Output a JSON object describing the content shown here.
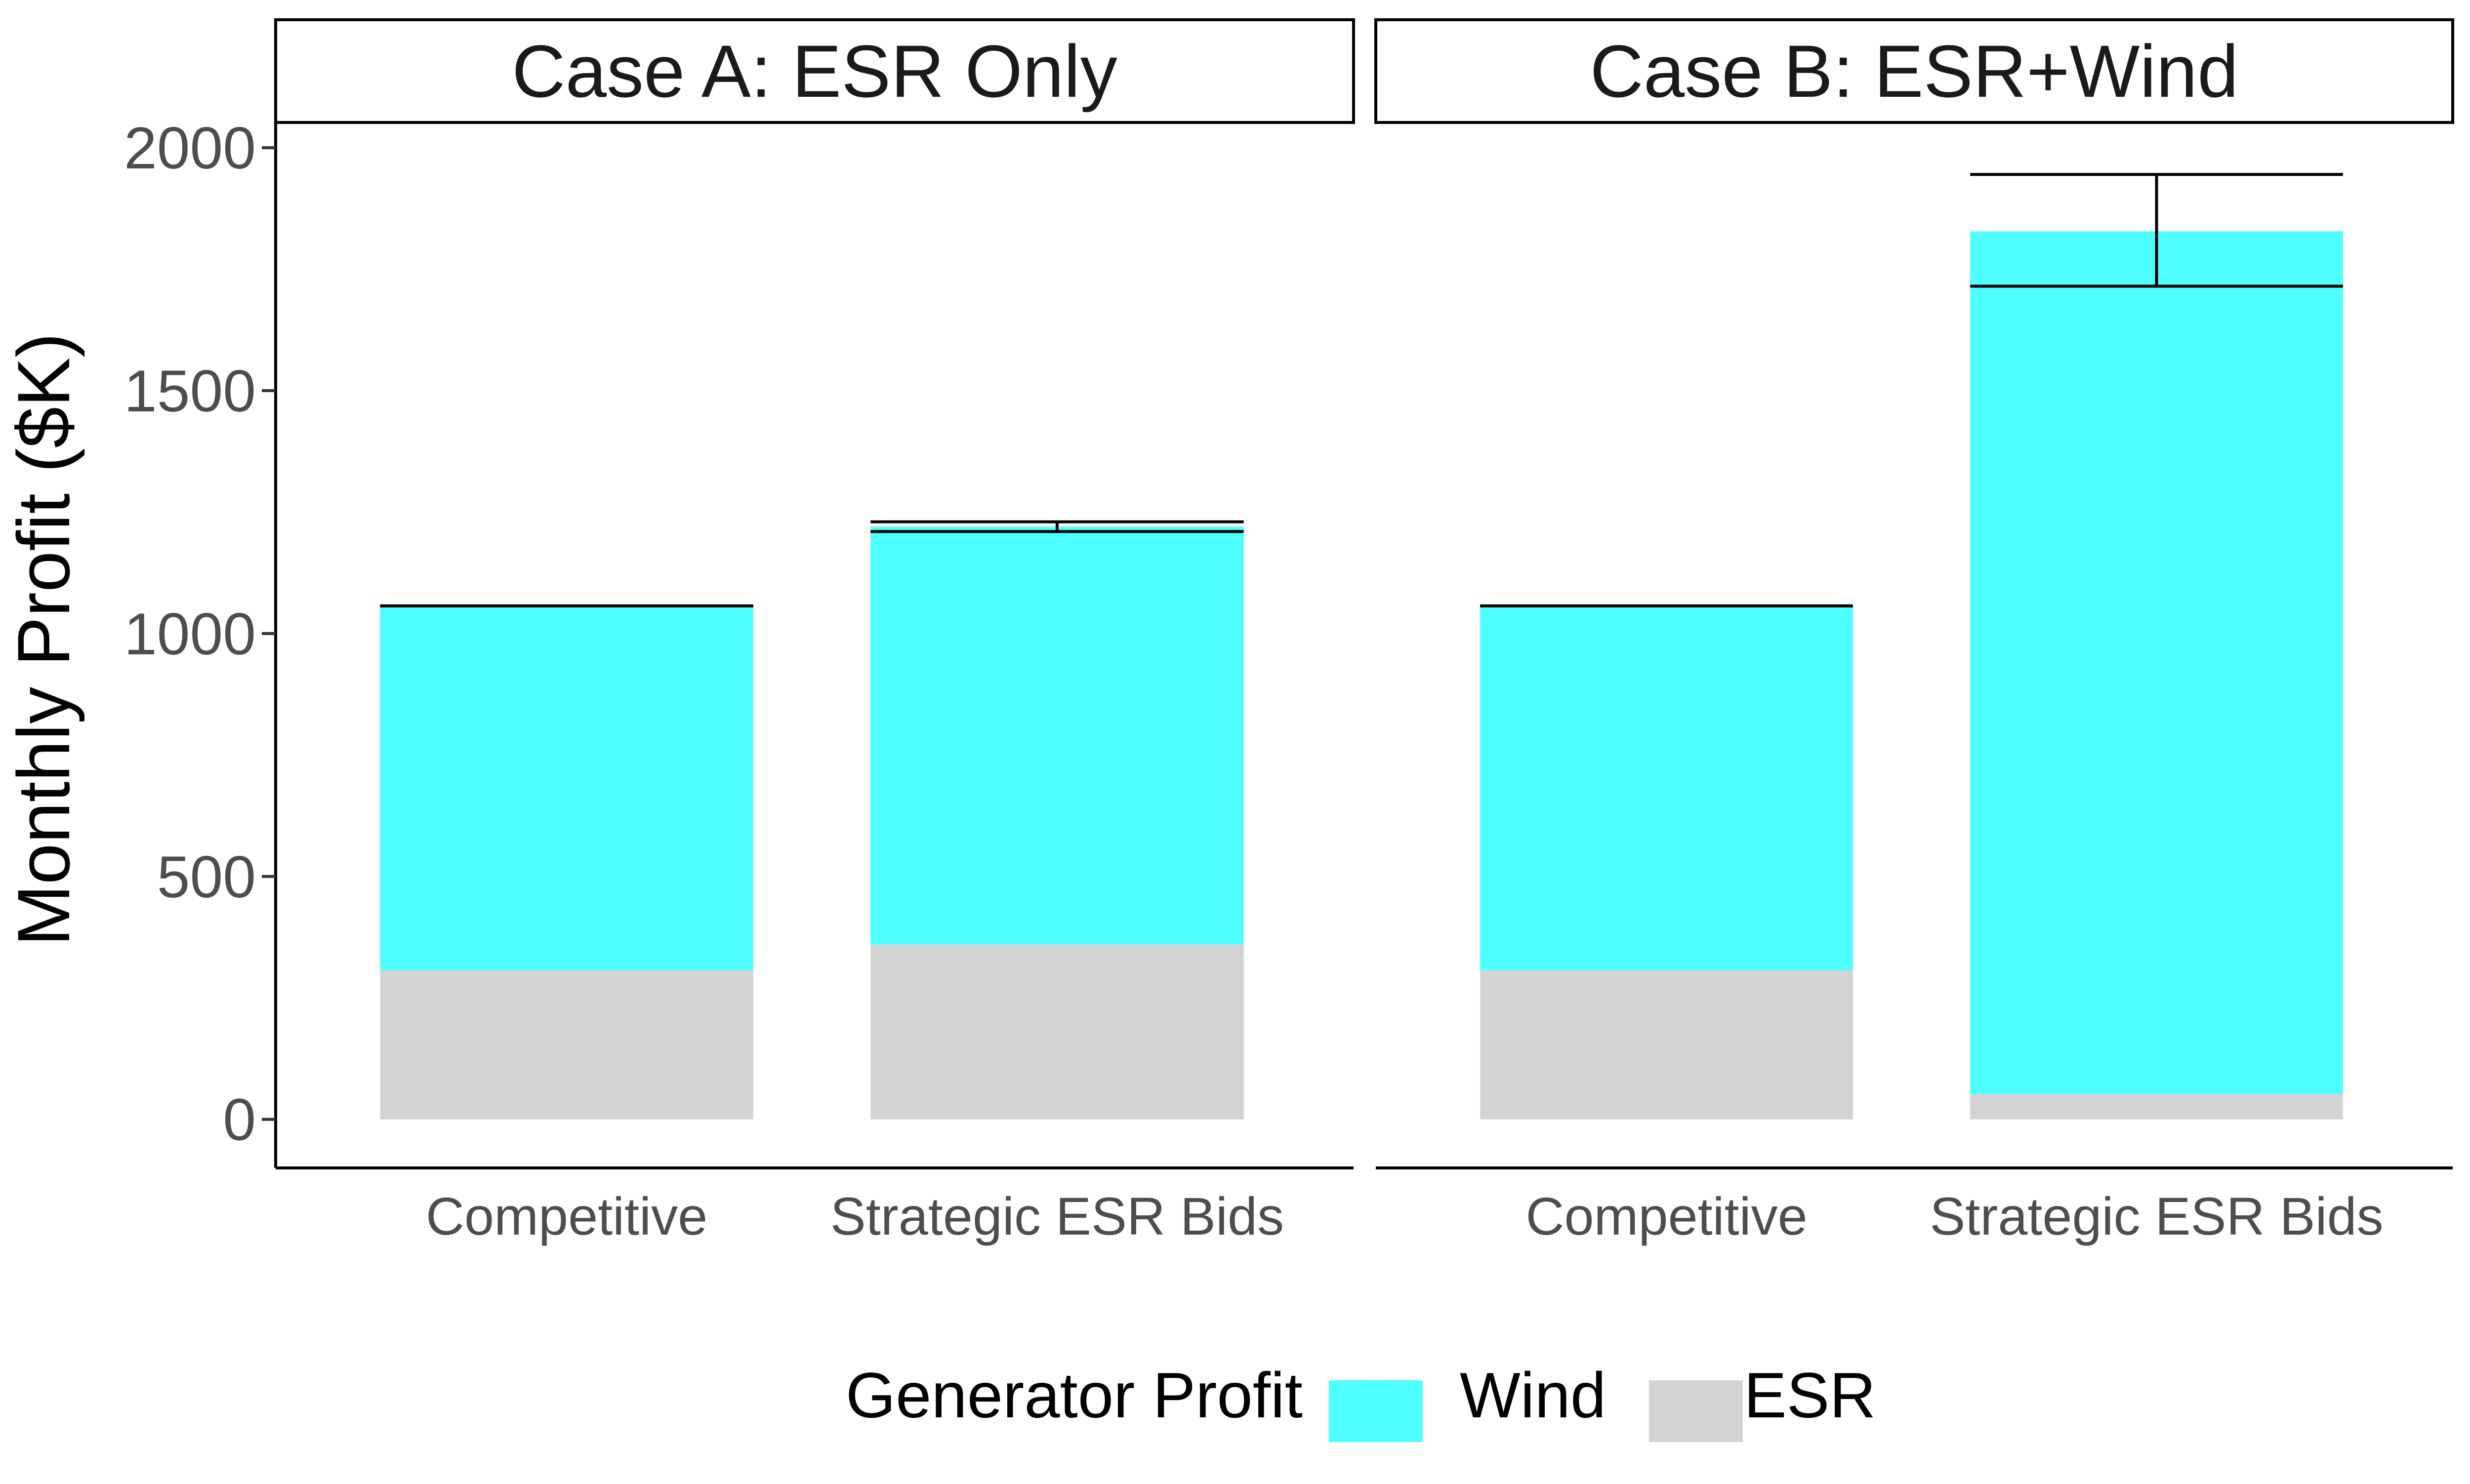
{
  "legend": {
    "title": "Generator Profit",
    "items": [
      {
        "label": "Wind",
        "color": "#4DFFFF"
      },
      {
        "label": "ESR",
        "color": "#D3D3D3"
      }
    ]
  },
  "chart_data": {
    "type": "bar",
    "stacked": true,
    "faceted": true,
    "ylabel": "Monthly Profit ($K)",
    "xlabel": "",
    "ylim": [
      -100,
      2050
    ],
    "yticks": [
      0,
      500,
      1000,
      1500,
      2000
    ],
    "categories": [
      "Competitive",
      "Strategic ESR Bids"
    ],
    "series_order": [
      "ESR",
      "Wind"
    ],
    "colors": {
      "Wind": "#4DFFFF",
      "ESR": "#D3D3D3"
    },
    "grid": false,
    "legend_position": "bottom",
    "panels": [
      {
        "title": "Case A: ESR Only",
        "series": [
          {
            "name": "ESR",
            "values": [
              307,
              360
            ]
          },
          {
            "name": "Wind",
            "values": [
              750,
              860
            ]
          }
        ],
        "error_bars": [
          {
            "lower": 1057,
            "upper": 1057
          },
          {
            "lower": 1210,
            "upper": 1230
          }
        ]
      },
      {
        "title": "Case B: ESR+Wind",
        "series": [
          {
            "name": "ESR",
            "values": [
              307,
              52
            ]
          },
          {
            "name": "Wind",
            "values": [
              750,
              1776
            ]
          }
        ],
        "error_bars": [
          {
            "lower": 1057,
            "upper": 1057
          },
          {
            "lower": 1715,
            "upper": 1945
          }
        ]
      }
    ]
  }
}
